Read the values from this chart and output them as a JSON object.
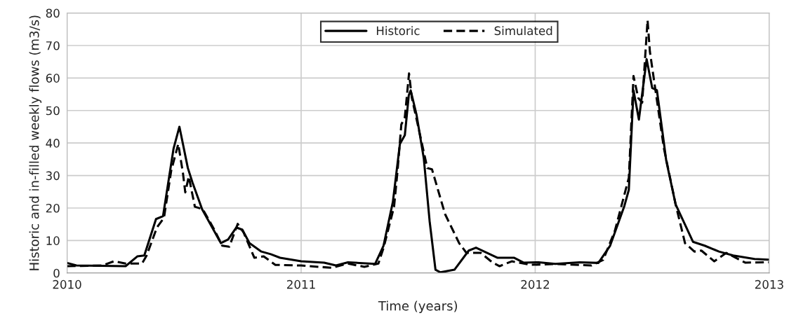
{
  "chart_data": {
    "type": "line",
    "xlabel": "Time (years)",
    "ylabel": "Historic and in-filled weekly flows (m3/s)",
    "xlim": [
      2010,
      2013
    ],
    "xticks": [
      2010,
      2011,
      2012,
      2013
    ],
    "ylim": [
      0,
      80
    ],
    "yticks": [
      0,
      10,
      20,
      30,
      40,
      50,
      60,
      70,
      80
    ],
    "grid": true,
    "legend": "top",
    "marker": "none",
    "series": [
      {
        "name": "Historic",
        "color": "#000000",
        "line_style": "solid",
        "x": [
          2010.0,
          2010.04,
          2010.25,
          2010.3,
          2010.33,
          2010.38,
          2010.41,
          2010.455,
          2010.48,
          2010.516,
          2010.536,
          2010.577,
          2010.657,
          2010.688,
          2010.723,
          2010.749,
          2010.779,
          2010.83,
          2010.87,
          2010.91,
          2011.0,
          2011.098,
          2011.149,
          2011.2,
          2011.316,
          2011.352,
          2011.392,
          2011.422,
          2011.443,
          2011.46,
          2011.468,
          2011.493,
          2011.524,
          2011.549,
          2011.574,
          2011.595,
          2011.655,
          2011.716,
          2011.747,
          2011.838,
          2011.909,
          2011.95,
          2012.015,
          2012.086,
          2012.19,
          2012.27,
          2012.32,
          2012.38,
          2012.4,
          2012.42,
          2012.443,
          2012.476,
          2012.5,
          2012.52,
          2012.56,
          2012.6,
          2012.674,
          2012.724,
          2012.785,
          2012.846,
          2012.937,
          2012.998
        ],
        "values": [
          3.1,
          2.3,
          2.1,
          5.1,
          5.4,
          16.6,
          17.5,
          38.3,
          45.0,
          32.3,
          27.8,
          19.6,
          9.2,
          10.3,
          14.0,
          13.3,
          9.2,
          6.6,
          5.8,
          4.7,
          3.6,
          3.2,
          2.3,
          3.3,
          2.8,
          8.4,
          21.9,
          39.7,
          42.4,
          54.7,
          56.2,
          48.7,
          35.3,
          15.9,
          1.0,
          0.2,
          1.0,
          6.9,
          7.8,
          4.7,
          4.7,
          3.2,
          3.3,
          2.8,
          3.3,
          3.1,
          8.4,
          20.4,
          25.6,
          56.2,
          47.2,
          65.8,
          56.9,
          56.2,
          34.5,
          21.1,
          9.6,
          8.4,
          6.6,
          5.4,
          4.3,
          4.1
        ]
      },
      {
        "name": "Simulated",
        "color": "#000000",
        "line_style": "dashed",
        "x": [
          2010.0,
          2010.15,
          2010.2,
          2010.25,
          2010.32,
          2010.34,
          2010.384,
          2010.414,
          2010.445,
          2010.475,
          2010.495,
          2010.505,
          2010.52,
          2010.546,
          2010.58,
          2010.627,
          2010.663,
          2010.693,
          2010.729,
          2010.754,
          2010.8,
          2010.84,
          2010.89,
          2011.0,
          2011.13,
          2011.2,
          2011.27,
          2011.33,
          2011.352,
          2011.397,
          2011.412,
          2011.428,
          2011.443,
          2011.461,
          2011.473,
          2011.514,
          2011.539,
          2011.559,
          2011.615,
          2011.675,
          2011.706,
          2011.767,
          2011.818,
          2011.848,
          2011.9,
          2011.98,
          2012.086,
          2012.24,
          2012.29,
          2012.34,
          2012.4,
          2012.42,
          2012.44,
          2012.457,
          2012.48,
          2012.49,
          2012.508,
          2012.55,
          2012.6,
          2012.64,
          2012.68,
          2012.71,
          2012.765,
          2012.816,
          2012.897,
          2012.998
        ],
        "values": [
          2.1,
          2.3,
          3.6,
          2.9,
          2.9,
          5.4,
          14.0,
          17.0,
          31.5,
          39.7,
          30.8,
          24.8,
          29.7,
          20.4,
          19.6,
          13.6,
          8.4,
          8.1,
          15.1,
          12.5,
          4.7,
          5.1,
          2.5,
          2.3,
          1.6,
          2.9,
          1.9,
          2.9,
          7.7,
          20.4,
          31.5,
          45.7,
          47.9,
          61.4,
          53.9,
          40.5,
          32.3,
          31.9,
          18.1,
          9.2,
          6.2,
          6.2,
          3.2,
          2.1,
          3.6,
          2.5,
          2.8,
          2.3,
          4.0,
          12.9,
          29.3,
          60.6,
          53.9,
          52.4,
          77.8,
          68.1,
          59.1,
          38.3,
          21.1,
          9.2,
          6.6,
          6.9,
          3.6,
          6.2,
          3.2,
          3.3
        ]
      }
    ]
  }
}
